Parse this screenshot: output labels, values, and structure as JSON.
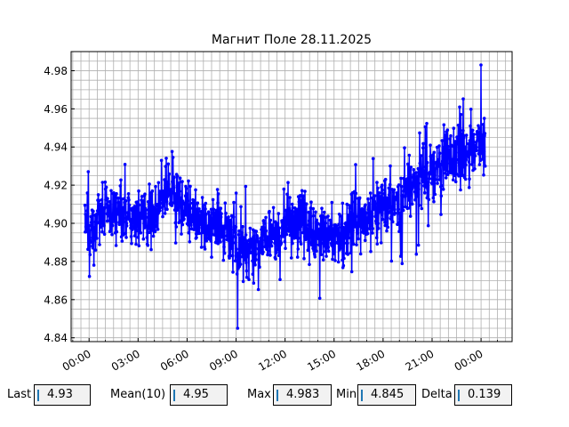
{
  "chart_data": {
    "type": "line",
    "title": "Магнит Поле 28.11.2025",
    "xlabel": "",
    "ylabel": "",
    "x_range_hours": [
      -1.1,
      25.9
    ],
    "ylim": [
      4.838,
      4.99
    ],
    "x_tick_labels": [
      "00:00",
      "03:00",
      "06:00",
      "09:00",
      "12:00",
      "15:00",
      "18:00",
      "21:00",
      "00:00"
    ],
    "x_tick_hours": [
      0,
      3,
      6,
      9,
      12,
      15,
      18,
      21,
      24
    ],
    "y_ticks": [
      4.84,
      4.86,
      4.88,
      4.9,
      4.92,
      4.94,
      4.96,
      4.98
    ],
    "grid": true,
    "series_color": "#0000ff",
    "trend_hours": [
      0,
      1,
      2,
      3,
      4,
      5,
      6,
      7,
      8,
      9,
      10,
      11,
      12,
      13,
      14,
      15,
      16,
      17,
      18,
      19,
      20,
      21,
      22,
      23,
      24.2
    ],
    "trend_values": [
      4.897,
      4.907,
      4.905,
      4.903,
      4.906,
      4.918,
      4.905,
      4.9,
      4.898,
      4.89,
      4.884,
      4.892,
      4.898,
      4.902,
      4.895,
      4.893,
      4.897,
      4.902,
      4.908,
      4.912,
      4.922,
      4.928,
      4.933,
      4.936,
      4.942
    ],
    "y_min_point": {
      "hour": 9.1,
      "value": 4.845
    },
    "y_max_point": {
      "hour": 24.0,
      "value": 4.983
    }
  },
  "stats": {
    "last_label": "Last",
    "last_value": "4.93",
    "mean_label": "Mean(10)",
    "mean_value": "4.95",
    "max_label": "Max",
    "max_value": "4.983",
    "min_label": "Min",
    "min_value": "4.845",
    "delta_label": "Delta",
    "delta_value": "0.139"
  }
}
